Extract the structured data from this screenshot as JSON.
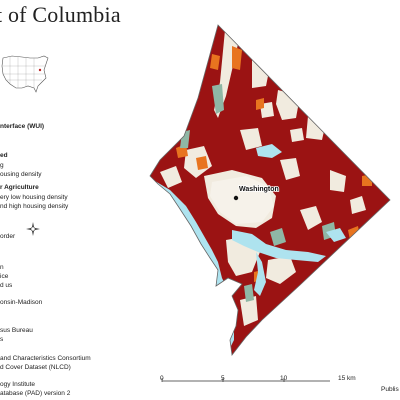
{
  "title": "ct of Columbia",
  "legend": {
    "wui_heading": "nterface (WUI)",
    "intermix_heading": "ed",
    "intermix_item1": "g",
    "intermix_item2": "ousing density",
    "agri_heading": "r Agriculture",
    "agri_item1": "ery low housing density",
    "agri_item2": "nd high housing density",
    "border": "order"
  },
  "map_label": "Washington",
  "credits": {
    "line1": "n",
    "line2": "ice",
    "line3": "d us",
    "line4": "onsin-Madison",
    "line5": "sus Bureau",
    "line6": "s",
    "line7": "and Characteristics Consortium",
    "line8": "d Cover Dataset (NLCD)",
    "line9": "ogy Institute",
    "line10": "atabase (PAD) version 2"
  },
  "scale": {
    "ticks": [
      "0",
      "5",
      "10",
      "15 km"
    ],
    "publisher": "Publis"
  },
  "colors": {
    "wui_dark_red": "#9b1313",
    "agri_orange": "#e8741f",
    "water_blue": "#aee3ef",
    "greenish": "#8fb7a5",
    "beige": "#f1ebdf",
    "border": "#666666"
  }
}
